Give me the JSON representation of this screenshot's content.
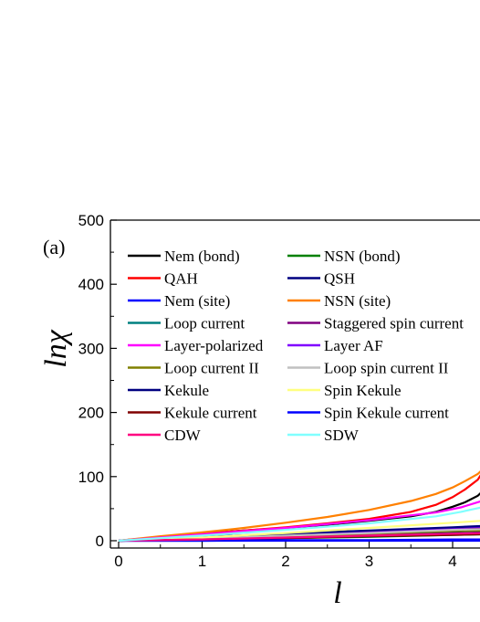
{
  "chart_data": {
    "type": "line",
    "panel_label": "(a)",
    "xlabel": "l",
    "ylabel": "lnχ",
    "xlim": [
      -0.05,
      4.35
    ],
    "ylim": [
      -10,
      500
    ],
    "xticks": [
      0,
      1,
      2,
      3,
      4
    ],
    "yticks": [
      0,
      100,
      200,
      300,
      400,
      500
    ],
    "grid": false,
    "legend_position": "top",
    "series": [
      {
        "name": "Nem (bond)",
        "color": "#000000",
        "x": [
          0,
          0.5,
          1,
          1.5,
          2,
          2.5,
          3,
          3.5,
          3.8,
          4.0,
          4.15,
          4.3,
          4.35
        ],
        "y": [
          0,
          6,
          11,
          16,
          20,
          25,
          31,
          38,
          45,
          53,
          60,
          70,
          76
        ]
      },
      {
        "name": "NSN (bond)",
        "color": "#008000",
        "x": [
          0,
          1,
          2,
          3,
          4,
          4.35
        ],
        "y": [
          0,
          2,
          4,
          6,
          9,
          10
        ]
      },
      {
        "name": "QAH",
        "color": "#ff0000",
        "x": [
          0,
          0.5,
          1,
          1.5,
          2,
          2.5,
          3,
          3.5,
          3.8,
          4.0,
          4.15,
          4.3,
          4.35
        ],
        "y": [
          0,
          6,
          11,
          16,
          21,
          27,
          34,
          45,
          56,
          68,
          80,
          95,
          105
        ]
      },
      {
        "name": "QSH",
        "color": "#000080",
        "x": [
          0,
          1,
          2,
          3,
          4,
          4.35
        ],
        "y": [
          0,
          3,
          6,
          9,
          12,
          13
        ]
      },
      {
        "name": "Nem (site)",
        "color": "#0000ff",
        "x": [
          0,
          1,
          2,
          3,
          4,
          4.35
        ],
        "y": [
          0,
          0,
          0,
          0,
          0,
          0
        ]
      },
      {
        "name": "NSN (site)",
        "color": "#ff8000",
        "x": [
          0,
          0.5,
          1,
          1.5,
          2,
          2.5,
          3,
          3.5,
          3.8,
          4.0,
          4.15,
          4.3,
          4.35
        ],
        "y": [
          0,
          7,
          13,
          20,
          28,
          37,
          48,
          62,
          73,
          83,
          93,
          104,
          110
        ]
      },
      {
        "name": "Loop current",
        "color": "#008080",
        "x": [
          0,
          1,
          2,
          3,
          4,
          4.35
        ],
        "y": [
          0,
          2,
          5,
          8,
          11,
          12
        ]
      },
      {
        "name": "Staggered spin current",
        "color": "#800080",
        "x": [
          0,
          1,
          2,
          3,
          4,
          4.35
        ],
        "y": [
          0,
          4,
          9,
          14,
          19,
          20
        ]
      },
      {
        "name": "Layer-polarized",
        "color": "#ff00ff",
        "x": [
          0,
          1,
          2,
          3,
          3.8,
          4.1,
          4.35
        ],
        "y": [
          0,
          10,
          20,
          32,
          44,
          52,
          62
        ]
      },
      {
        "name": "Layer AF",
        "color": "#8000ff",
        "x": [
          0,
          1,
          2,
          3,
          4,
          4.35
        ],
        "y": [
          0,
          5,
          10,
          15,
          20,
          22
        ]
      },
      {
        "name": "Loop current II",
        "color": "#808000",
        "x": [
          0,
          1,
          2,
          3,
          4,
          4.35
        ],
        "y": [
          0,
          3,
          7,
          11,
          15,
          16
        ]
      },
      {
        "name": "Loop spin current II",
        "color": "#c0c0c0",
        "x": [
          0,
          1,
          2,
          3,
          4,
          4.35
        ],
        "y": [
          0,
          4,
          8,
          12,
          17,
          18
        ]
      },
      {
        "name": "Kekule",
        "color": "#000080",
        "x": [
          0,
          1,
          2,
          3,
          4,
          4.35
        ],
        "y": [
          0,
          6,
          11,
          16,
          21,
          23
        ]
      },
      {
        "name": "Spin Kekule",
        "color": "#ffff80",
        "x": [
          0,
          1,
          2,
          3,
          4,
          4.35
        ],
        "y": [
          0,
          5,
          12,
          20,
          28,
          31
        ]
      },
      {
        "name": "Kekule current",
        "color": "#800000",
        "x": [
          0,
          1,
          2,
          3,
          4,
          4.35
        ],
        "y": [
          0,
          2,
          4,
          7,
          9,
          10
        ]
      },
      {
        "name": "Spin Kekule current",
        "color": "#0000ff",
        "x": [
          0,
          1,
          2,
          3,
          4,
          4.35
        ],
        "y": [
          0,
          0,
          1,
          1,
          2,
          2
        ]
      },
      {
        "name": "CDW",
        "color": "#ff0080",
        "x": [
          0,
          1,
          2,
          3,
          4,
          4.35
        ],
        "y": [
          0,
          2,
          5,
          8,
          11,
          12
        ]
      },
      {
        "name": "SDW",
        "color": "#80ffff",
        "x": [
          0,
          1,
          2,
          3,
          3.8,
          4.1,
          4.35
        ],
        "y": [
          0,
          8,
          17,
          27,
          38,
          45,
          52
        ]
      }
    ]
  }
}
